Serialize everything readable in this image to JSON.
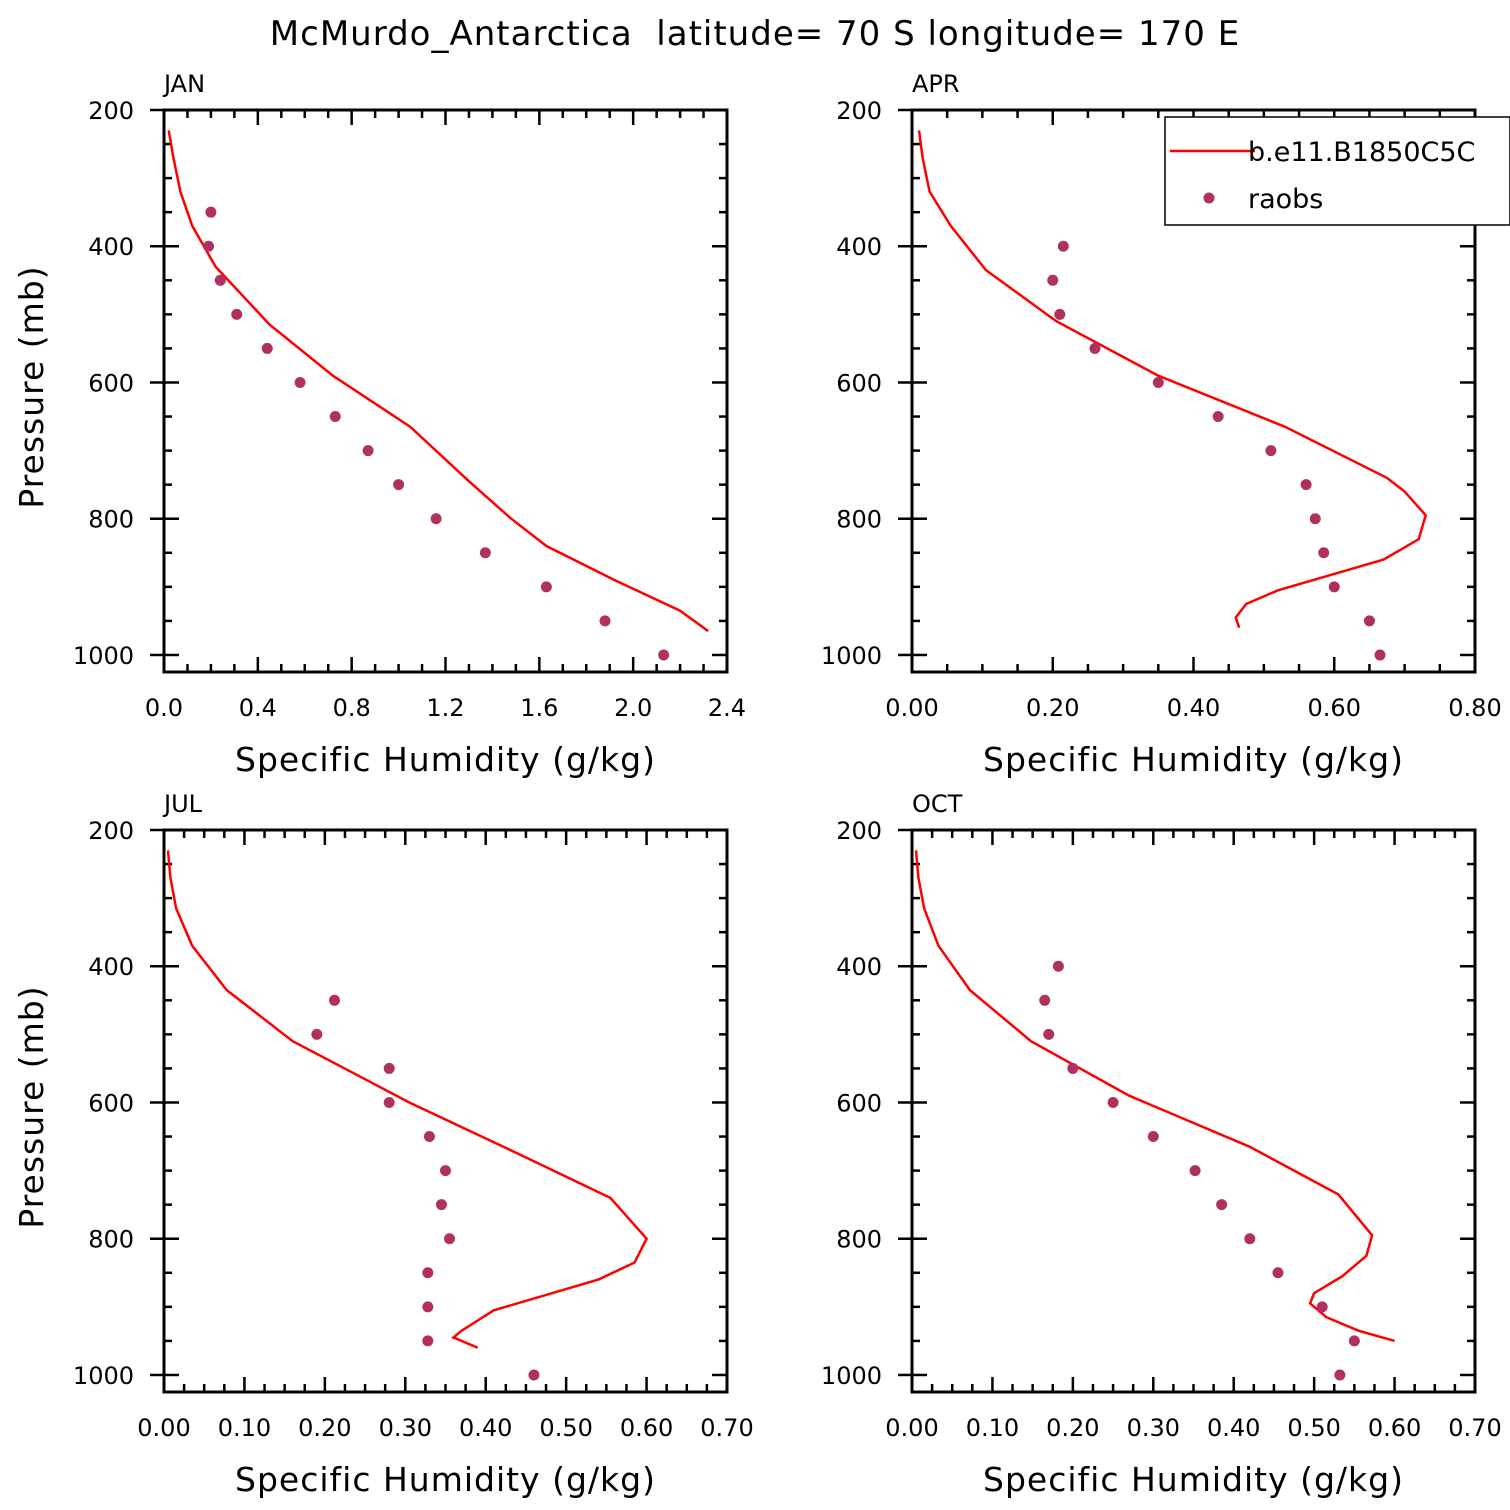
{
  "title": "McMurdo_Antarctica  latitude= 70 S longitude= 170 E",
  "colors": {
    "model_line": "#ff0000",
    "raobs_dot": "#b03060",
    "axes": "#000000"
  },
  "legend": {
    "panel_index": 1,
    "entries": [
      {
        "label": "b.e11.B1850C5C",
        "style": "line"
      },
      {
        "label": "raobs",
        "style": "dot"
      }
    ]
  },
  "chart_data": [
    {
      "type": "line",
      "panel": "JAN",
      "xlabel": "Specific Humidity (g/kg)",
      "ylabel": "Pressure (mb)",
      "xlim": [
        0.0,
        2.4
      ],
      "ylim": [
        200,
        1025
      ],
      "y_reversed": true,
      "xticks": [
        0.0,
        0.4,
        0.8,
        1.2,
        1.6,
        2.0,
        2.4
      ],
      "xtick_labels": [
        "0.0",
        "0.4",
        "0.8",
        "1.2",
        "1.6",
        "2.0",
        "2.4"
      ],
      "yticks": [
        200,
        400,
        600,
        800,
        1000
      ],
      "ytick_labels": [
        "200",
        "400",
        "600",
        "800",
        "1000"
      ],
      "series": [
        {
          "name": "b.e11.B1850C5C",
          "kind": "line",
          "x": [
            0.02,
            0.04,
            0.07,
            0.12,
            0.22,
            0.45,
            0.72,
            1.05,
            1.3,
            1.48,
            1.63,
            1.92,
            2.2,
            2.32
          ],
          "y": [
            230,
            270,
            320,
            370,
            430,
            515,
            590,
            665,
            745,
            800,
            840,
            890,
            935,
            965
          ]
        },
        {
          "name": "raobs",
          "kind": "scatter",
          "x": [
            0.2,
            0.19,
            0.24,
            0.31,
            0.44,
            0.58,
            0.73,
            0.87,
            1.0,
            1.16,
            1.37,
            1.63,
            1.88,
            2.13
          ],
          "y": [
            350,
            400,
            450,
            500,
            550,
            600,
            650,
            700,
            750,
            800,
            850,
            900,
            950,
            1000
          ]
        }
      ]
    },
    {
      "type": "line",
      "panel": "APR",
      "xlabel": "Specific Humidity (g/kg)",
      "ylabel": "",
      "xlim": [
        0.0,
        0.8
      ],
      "ylim": [
        200,
        1025
      ],
      "y_reversed": true,
      "xticks": [
        0.0,
        0.2,
        0.4,
        0.6,
        0.8
      ],
      "xtick_labels": [
        "0.00",
        "0.20",
        "0.40",
        "0.60",
        "0.80"
      ],
      "yticks": [
        200,
        400,
        600,
        800,
        1000
      ],
      "ytick_labels": [
        "200",
        "400",
        "600",
        "800",
        "1000"
      ],
      "series": [
        {
          "name": "b.e11.B1850C5C",
          "kind": "line",
          "x": [
            0.01,
            0.015,
            0.025,
            0.055,
            0.105,
            0.205,
            0.35,
            0.53,
            0.675,
            0.7,
            0.73,
            0.72,
            0.67,
            0.52,
            0.475,
            0.46,
            0.465
          ],
          "y": [
            230,
            270,
            320,
            370,
            435,
            510,
            590,
            665,
            740,
            760,
            795,
            830,
            860,
            905,
            925,
            945,
            960
          ]
        },
        {
          "name": "raobs",
          "kind": "scatter",
          "x": [
            0.215,
            0.2,
            0.21,
            0.26,
            0.35,
            0.435,
            0.51,
            0.56,
            0.573,
            0.585,
            0.6,
            0.65,
            0.665
          ],
          "y": [
            400,
            450,
            500,
            550,
            600,
            650,
            700,
            750,
            800,
            850,
            900,
            950,
            1000
          ]
        }
      ]
    },
    {
      "type": "line",
      "panel": "JUL",
      "xlabel": "Specific Humidity (g/kg)",
      "ylabel": "Pressure (mb)",
      "xlim": [
        0.0,
        0.7
      ],
      "ylim": [
        200,
        1025
      ],
      "y_reversed": true,
      "xticks": [
        0.0,
        0.1,
        0.2,
        0.3,
        0.4,
        0.5,
        0.6,
        0.7
      ],
      "xtick_labels": [
        "0.00",
        "0.10",
        "0.20",
        "0.30",
        "0.40",
        "0.50",
        "0.60",
        "0.70"
      ],
      "yticks": [
        200,
        400,
        600,
        800,
        1000
      ],
      "ytick_labels": [
        "200",
        "400",
        "600",
        "800",
        "1000"
      ],
      "series": [
        {
          "name": "b.e11.B1850C5C",
          "kind": "line",
          "x": [
            0.005,
            0.008,
            0.015,
            0.035,
            0.078,
            0.16,
            0.305,
            0.44,
            0.555,
            0.6,
            0.585,
            0.54,
            0.41,
            0.37,
            0.36,
            0.39
          ],
          "y": [
            230,
            270,
            315,
            370,
            435,
            510,
            600,
            675,
            740,
            800,
            835,
            860,
            905,
            935,
            945,
            960
          ]
        },
        {
          "name": "raobs",
          "kind": "scatter",
          "x": [
            0.212,
            0.19,
            0.28,
            0.28,
            0.33,
            0.35,
            0.345,
            0.355,
            0.328,
            0.328,
            0.328,
            0.46
          ],
          "y": [
            450,
            500,
            550,
            600,
            650,
            700,
            750,
            800,
            850,
            900,
            950,
            1000
          ]
        }
      ]
    },
    {
      "type": "line",
      "panel": "OCT",
      "xlabel": "Specific Humidity (g/kg)",
      "ylabel": "",
      "xlim": [
        0.0,
        0.7
      ],
      "ylim": [
        200,
        1025
      ],
      "y_reversed": true,
      "xticks": [
        0.0,
        0.1,
        0.2,
        0.3,
        0.4,
        0.5,
        0.6,
        0.7
      ],
      "xtick_labels": [
        "0.00",
        "0.10",
        "0.20",
        "0.30",
        "0.40",
        "0.50",
        "0.60",
        "0.70"
      ],
      "yticks": [
        200,
        400,
        600,
        800,
        1000
      ],
      "ytick_labels": [
        "200",
        "400",
        "600",
        "800",
        "1000"
      ],
      "series": [
        {
          "name": "b.e11.B1850C5C",
          "kind": "line",
          "x": [
            0.005,
            0.008,
            0.015,
            0.033,
            0.072,
            0.148,
            0.27,
            0.42,
            0.53,
            0.572,
            0.565,
            0.535,
            0.5,
            0.495,
            0.515,
            0.555,
            0.6
          ],
          "y": [
            230,
            270,
            315,
            370,
            435,
            510,
            590,
            665,
            735,
            795,
            825,
            855,
            880,
            895,
            915,
            935,
            950
          ]
        },
        {
          "name": "raobs",
          "kind": "scatter",
          "x": [
            0.182,
            0.165,
            0.17,
            0.2,
            0.25,
            0.3,
            0.352,
            0.385,
            0.42,
            0.455,
            0.51,
            0.55,
            0.532
          ],
          "y": [
            400,
            450,
            500,
            550,
            600,
            650,
            700,
            750,
            800,
            850,
            900,
            950,
            1000
          ]
        }
      ]
    }
  ]
}
